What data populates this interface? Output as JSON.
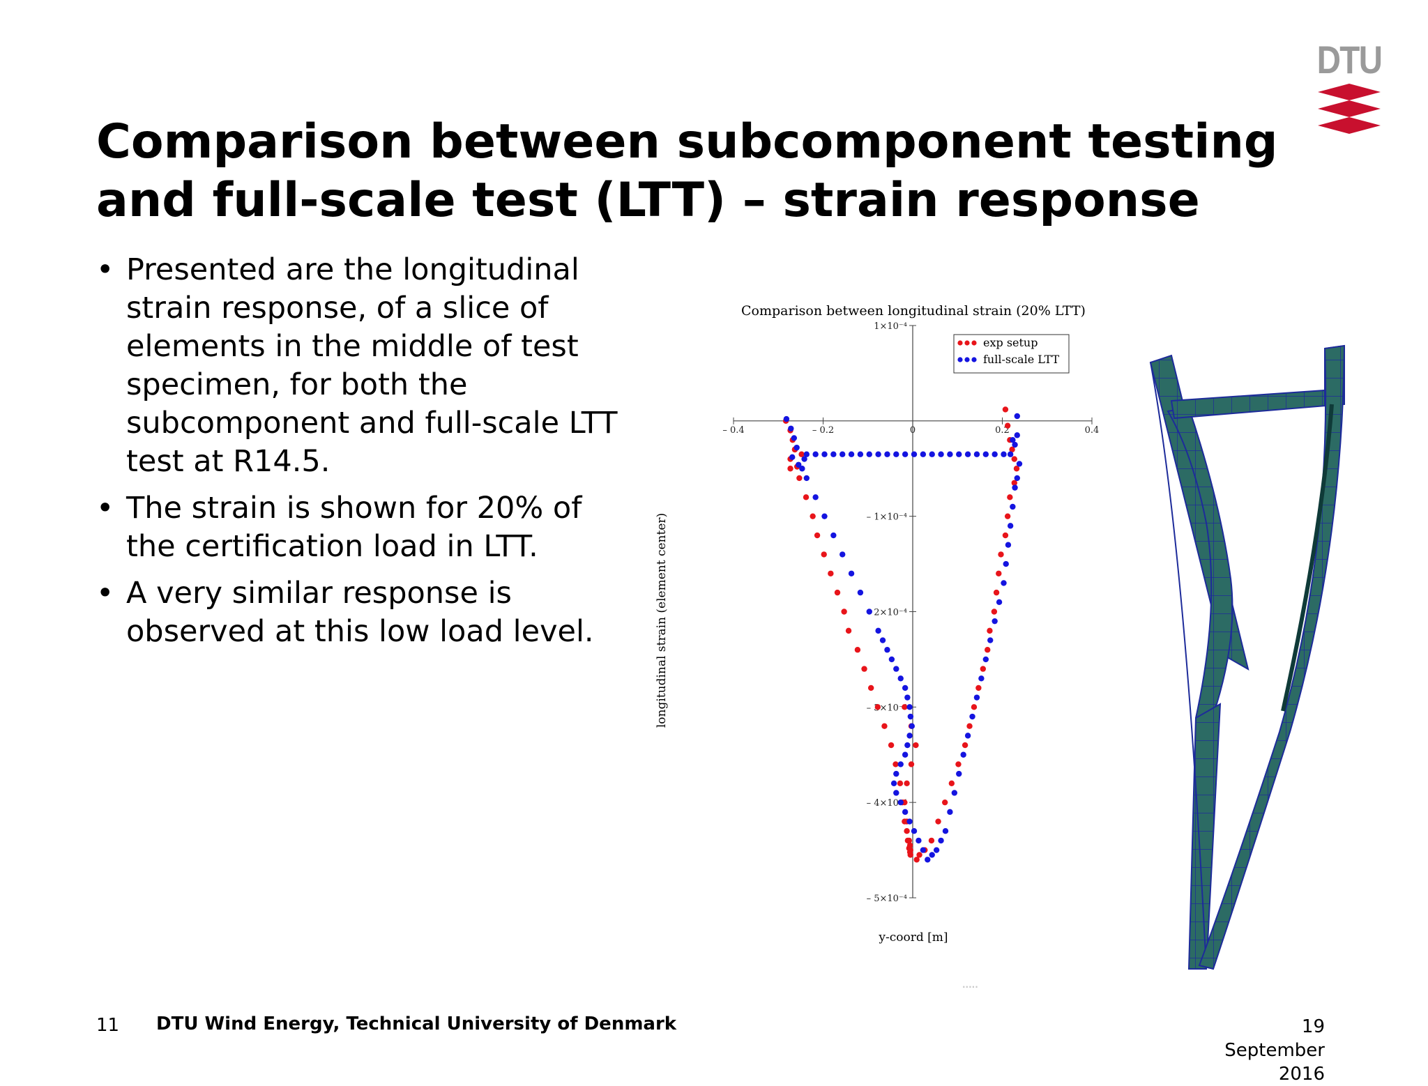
{
  "logo": {
    "text": "DTU",
    "color_red": "#c8102e"
  },
  "title": "Comparison between subcomponent testing and full-scale test (LTT) – strain response",
  "bullets": [
    "Presented are the longitudinal strain response, of a slice of elements in the middle of test specimen, for both the subcomponent and full-scale LTT test at R14.5.",
    "The strain is shown for 20% of the certification load in LTT.",
    "A very similar response is observed at this low load level."
  ],
  "chart_data": {
    "type": "scatter",
    "title": "Comparison between longitudinal strain (20% LTT)",
    "xlabel": "y-coord [m]",
    "ylabel": "longitudinal strain (element center)",
    "xlim": [
      -0.4,
      0.4
    ],
    "ylim": [
      -0.0005,
      0.0001
    ],
    "x_ticks": [
      "– 0.4",
      "– 0.2",
      "0",
      "0.2",
      "0.4"
    ],
    "y_ticks": [
      "1×10⁻⁴",
      "– 1×10⁻⁴",
      "– 2×10⁻⁴",
      "– 3×10⁻⁴",
      "– 4×10⁻⁴",
      "– 5×10⁻⁴"
    ],
    "legend_placement": "top-right",
    "series": [
      {
        "name": "exp setup",
        "color": "#e8141a",
        "x": [
          -0.28,
          -0.27,
          -0.265,
          -0.26,
          -0.27,
          -0.255,
          -0.245,
          -0.26,
          -0.27,
          -0.25,
          -0.235,
          -0.22,
          -0.21,
          -0.195,
          -0.18,
          -0.165,
          -0.15,
          -0.14,
          -0.12,
          -0.105,
          -0.09,
          -0.075,
          -0.06,
          -0.045,
          -0.035,
          -0.025,
          -0.015,
          -0.01,
          -0.005,
          -0.003,
          -0.002,
          -0.002,
          -0.003,
          -0.005,
          -0.008,
          -0.01,
          -0.015,
          -0.02,
          -0.01,
          0.0,
          0.01,
          0.0,
          -0.015,
          0.21,
          0.215,
          0.22,
          0.225,
          0.23,
          0.235,
          0.23,
          0.22,
          0.215,
          0.21,
          0.2,
          0.195,
          0.19,
          0.185,
          0.175,
          0.17,
          0.16,
          0.15,
          0.14,
          0.13,
          0.12,
          0.105,
          0.09,
          0.075,
          0.06,
          0.045,
          0.03,
          0.018,
          0.012
        ],
        "y": [
          0.0,
          -1e-05,
          -2e-05,
          -3e-05,
          -4e-05,
          -4.8e-05,
          -3.5e-05,
          -3e-05,
          -5e-05,
          -6e-05,
          -8e-05,
          -0.0001,
          -0.00012,
          -0.00014,
          -0.00016,
          -0.00018,
          -0.0002,
          -0.00022,
          -0.00024,
          -0.00026,
          -0.00028,
          -0.0003,
          -0.00032,
          -0.00034,
          -0.00036,
          -0.00038,
          -0.0004,
          -0.00042,
          -0.00044,
          -0.000445,
          -0.00045,
          -0.000455,
          -0.000452,
          -0.000448,
          -0.00044,
          -0.00043,
          -0.00042,
          -0.0004,
          -0.00038,
          -0.00036,
          -0.00034,
          -0.00032,
          -0.0003,
          1.2e-05,
          -5e-06,
          -2e-05,
          -3e-05,
          -4e-05,
          -5e-05,
          -6.5e-05,
          -8e-05,
          -0.0001,
          -0.00012,
          -0.00014,
          -0.00016,
          -0.00018,
          -0.0002,
          -0.00022,
          -0.00024,
          -0.00026,
          -0.00028,
          -0.0003,
          -0.00032,
          -0.00034,
          -0.00036,
          -0.00038,
          -0.0004,
          -0.00042,
          -0.00044,
          -0.00045,
          -0.000455,
          -0.00046
        ]
      },
      {
        "name": "full-scale LTT",
        "color": "#1414e0",
        "x": [
          -0.285,
          -0.275,
          -0.268,
          -0.262,
          -0.272,
          -0.258,
          -0.24,
          -0.22,
          -0.2,
          -0.18,
          -0.16,
          -0.14,
          -0.12,
          -0.1,
          -0.08,
          -0.06,
          -0.04,
          -0.02,
          0.0,
          0.02,
          0.04,
          0.06,
          0.08,
          0.1,
          0.12,
          0.14,
          0.16,
          0.18,
          0.2,
          0.215,
          0.225,
          0.23,
          0.235,
          0.23,
          0.225,
          0.22,
          0.215,
          0.21,
          0.205,
          0.2,
          0.19,
          0.18,
          0.17,
          0.16,
          0.15,
          0.14,
          0.13,
          0.12,
          0.11,
          0.1,
          0.09,
          0.08,
          0.07,
          0.06,
          0.05,
          0.04,
          0.03,
          0.02,
          0.01,
          0.0,
          -0.01,
          -0.02,
          -0.03,
          -0.04,
          -0.045,
          -0.04,
          -0.03,
          -0.02,
          -0.015,
          -0.01,
          -0.005,
          -0.008,
          -0.01,
          -0.015,
          -0.02,
          -0.03,
          -0.04,
          -0.05,
          -0.06,
          -0.07,
          -0.08,
          -0.1,
          -0.12,
          -0.14,
          -0.16,
          -0.18,
          -0.2,
          -0.22,
          -0.24,
          -0.25,
          -0.245,
          0.23,
          0.22
        ],
        "y": [
          2e-06,
          -8e-06,
          -1.8e-05,
          -2.8e-05,
          -3.8e-05,
          -4.6e-05,
          -3.5e-05,
          -3.5e-05,
          -3.5e-05,
          -3.5e-05,
          -3.5e-05,
          -3.5e-05,
          -3.5e-05,
          -3.5e-05,
          -3.5e-05,
          -3.5e-05,
          -3.5e-05,
          -3.5e-05,
          -3.5e-05,
          -3.5e-05,
          -3.5e-05,
          -3.5e-05,
          -3.5e-05,
          -3.5e-05,
          -3.5e-05,
          -3.5e-05,
          -3.5e-05,
          -3.5e-05,
          -3.5e-05,
          -3.5e-05,
          -2.5e-05,
          -1.5e-05,
          -4.5e-05,
          -6e-05,
          -7e-05,
          -9e-05,
          -0.00011,
          -0.00013,
          -0.00015,
          -0.00017,
          -0.00019,
          -0.00021,
          -0.00023,
          -0.00025,
          -0.00027,
          -0.00029,
          -0.00031,
          -0.00033,
          -0.00035,
          -0.00037,
          -0.00039,
          -0.00041,
          -0.00043,
          -0.00044,
          -0.00045,
          -0.000455,
          -0.00046,
          -0.00045,
          -0.00044,
          -0.00043,
          -0.00042,
          -0.00041,
          -0.0004,
          -0.00039,
          -0.00038,
          -0.00037,
          -0.00036,
          -0.00035,
          -0.00034,
          -0.00033,
          -0.00032,
          -0.00031,
          -0.0003,
          -0.00029,
          -0.00028,
          -0.00027,
          -0.00026,
          -0.00025,
          -0.00024,
          -0.00023,
          -0.00022,
          -0.0002,
          -0.00018,
          -0.00016,
          -0.00014,
          -0.00012,
          -0.0001,
          -8e-05,
          -6e-05,
          -5e-05,
          -4e-05,
          5e-06,
          -2e-05
        ]
      }
    ]
  },
  "footer": {
    "page": "11",
    "org": "DTU Wind Energy, Technical University of Denmark",
    "date_day": "19",
    "date_month": "September",
    "date_year": "2016"
  }
}
